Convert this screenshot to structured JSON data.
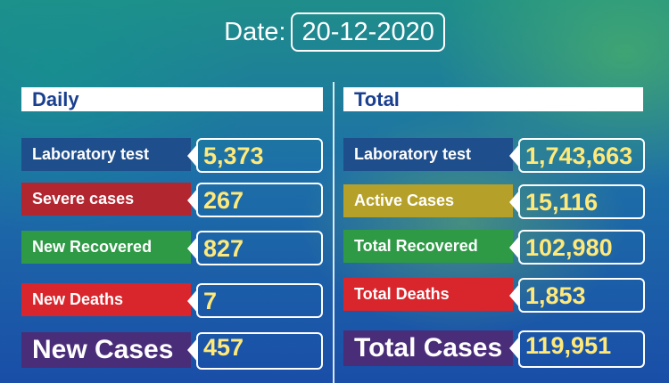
{
  "date": {
    "label": "Date:",
    "value": "20-12-2020"
  },
  "daily": {
    "header": "Daily",
    "rows": [
      {
        "label": "Laboratory test",
        "value": "5,373",
        "color": "#1f4e8c"
      },
      {
        "label": "Severe cases",
        "value": "267",
        "color": "#b22630"
      },
      {
        "label": "New Recovered",
        "value": "827",
        "color": "#2e9a46"
      },
      {
        "label": "New Deaths",
        "value": "7",
        "color": "#d9252c"
      },
      {
        "label": "New Cases",
        "value": "457",
        "color": "#4a2d79"
      }
    ]
  },
  "total": {
    "header": "Total",
    "rows": [
      {
        "label": "Laboratory test",
        "value": "1,743,663",
        "color": "#1f4e8c"
      },
      {
        "label": "Active Cases",
        "value": "15,116",
        "color": "#b5a02a"
      },
      {
        "label": "Total Recovered",
        "value": "102,980",
        "color": "#2e9a46"
      },
      {
        "label": "Total Deaths",
        "value": "1,853",
        "color": "#d9252c"
      },
      {
        "label": "Total Cases",
        "value": "119,951",
        "color": "#4a2d79"
      }
    ]
  }
}
